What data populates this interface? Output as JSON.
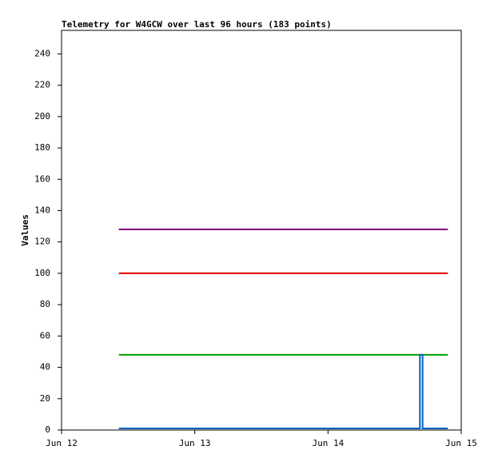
{
  "chart_data": {
    "type": "line",
    "title": "Telemetry for W4GCW over last 96 hours (183 points)",
    "y_label": "Values",
    "xlim": [
      0,
      3
    ],
    "xticks": [
      {
        "value": 0,
        "label": "Jun 12"
      },
      {
        "value": 1,
        "label": "Jun 13"
      },
      {
        "value": 2,
        "label": "Jun 14"
      },
      {
        "value": 3,
        "label": "Jun 15"
      }
    ],
    "ylim": [
      0,
      255
    ],
    "yticks": [
      0,
      20,
      40,
      60,
      80,
      100,
      120,
      140,
      160,
      180,
      200,
      220,
      240
    ],
    "series": [
      {
        "color": "#800080",
        "x": [
          0.43,
          2.9
        ],
        "values": [
          128,
          128
        ]
      },
      {
        "color": "#e00000",
        "x": [
          0.43,
          2.9
        ],
        "values": [
          100,
          100
        ]
      },
      {
        "color": "#00a000",
        "x": [
          0.43,
          2.9
        ],
        "values": [
          48,
          48
        ]
      },
      {
        "color": "#0060c0",
        "x": [
          0.43,
          2.69,
          2.69,
          2.71,
          2.71,
          2.9
        ],
        "values": [
          1,
          1,
          48,
          48,
          1,
          1
        ]
      }
    ]
  }
}
